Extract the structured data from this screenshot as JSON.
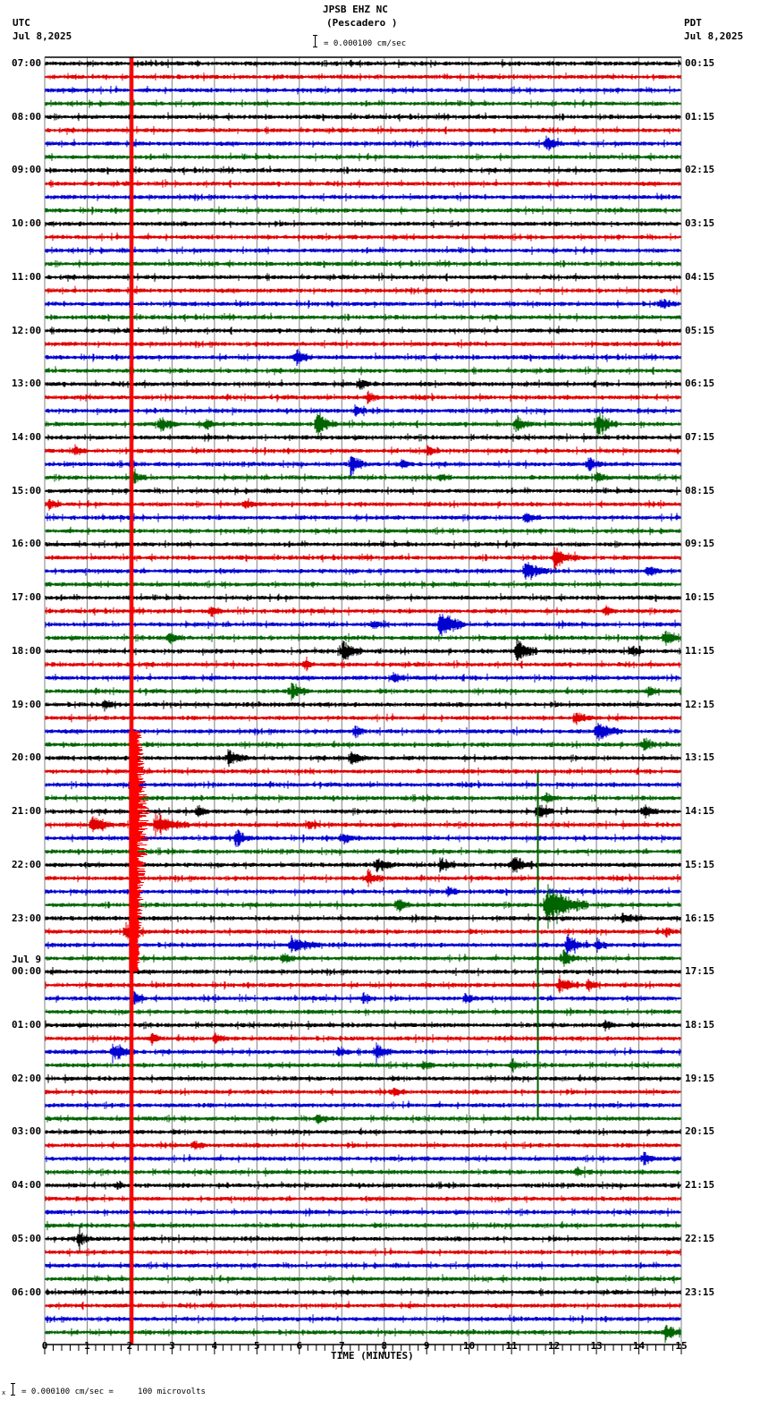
{
  "header": {
    "station": "JPSB EHZ NC",
    "location": "(Pescadero )",
    "left_tz": "UTC",
    "left_date": "Jul 8,2025",
    "right_tz": "PDT",
    "right_date": "Jul 8,2025",
    "scale_text": "= 0.000100 cm/sec"
  },
  "footer": {
    "scale_text": "= 0.000100 cm/sec =     100 microvolts",
    "x_axis_title": "TIME (MINUTES)"
  },
  "colors": {
    "trace_cycle": [
      "#000000",
      "#e00000",
      "#0000d0",
      "#006400"
    ],
    "grid": "#808080",
    "teleseism_line": "#ff0000"
  },
  "chart_data": {
    "type": "line",
    "title": "JPSB EHZ NC (Pescadero ) helicorder",
    "xlabel": "TIME (MINUTES)",
    "ylabel": "",
    "xlim": [
      0,
      15
    ],
    "x_ticks": [
      0,
      1,
      2,
      3,
      4,
      5,
      6,
      7,
      8,
      9,
      10,
      11,
      12,
      13,
      14,
      15
    ],
    "minor_ticks_per_minute": 5,
    "traces_per_hour": 4,
    "n_traces": 96,
    "left_labels": [
      {
        "row": 0,
        "text": "07:00"
      },
      {
        "row": 4,
        "text": "08:00"
      },
      {
        "row": 8,
        "text": "09:00"
      },
      {
        "row": 12,
        "text": "10:00"
      },
      {
        "row": 16,
        "text": "11:00"
      },
      {
        "row": 20,
        "text": "12:00"
      },
      {
        "row": 24,
        "text": "13:00"
      },
      {
        "row": 28,
        "text": "14:00"
      },
      {
        "row": 32,
        "text": "15:00"
      },
      {
        "row": 36,
        "text": "16:00"
      },
      {
        "row": 40,
        "text": "17:00"
      },
      {
        "row": 44,
        "text": "18:00"
      },
      {
        "row": 48,
        "text": "19:00"
      },
      {
        "row": 52,
        "text": "20:00"
      },
      {
        "row": 56,
        "text": "21:00"
      },
      {
        "row": 60,
        "text": "22:00"
      },
      {
        "row": 64,
        "text": "23:00"
      },
      {
        "row": 68,
        "text": "00:00",
        "date": "Jul 9"
      },
      {
        "row": 72,
        "text": "01:00"
      },
      {
        "row": 76,
        "text": "02:00"
      },
      {
        "row": 80,
        "text": "03:00"
      },
      {
        "row": 84,
        "text": "04:00"
      },
      {
        "row": 88,
        "text": "05:00"
      },
      {
        "row": 92,
        "text": "06:00"
      }
    ],
    "right_labels": [
      {
        "row": 0,
        "text": "00:15"
      },
      {
        "row": 4,
        "text": "01:15"
      },
      {
        "row": 8,
        "text": "02:15"
      },
      {
        "row": 12,
        "text": "03:15"
      },
      {
        "row": 16,
        "text": "04:15"
      },
      {
        "row": 20,
        "text": "05:15"
      },
      {
        "row": 24,
        "text": "06:15"
      },
      {
        "row": 28,
        "text": "07:15"
      },
      {
        "row": 32,
        "text": "08:15"
      },
      {
        "row": 36,
        "text": "09:15"
      },
      {
        "row": 40,
        "text": "10:15"
      },
      {
        "row": 44,
        "text": "11:15"
      },
      {
        "row": 48,
        "text": "12:15"
      },
      {
        "row": 52,
        "text": "13:15"
      },
      {
        "row": 56,
        "text": "14:15"
      },
      {
        "row": 60,
        "text": "15:15"
      },
      {
        "row": 64,
        "text": "16:15"
      },
      {
        "row": 68,
        "text": "17:15"
      },
      {
        "row": 72,
        "text": "18:15"
      },
      {
        "row": 76,
        "text": "19:15"
      },
      {
        "row": 80,
        "text": "20:15"
      },
      {
        "row": 84,
        "text": "21:15"
      },
      {
        "row": 88,
        "text": "22:15"
      },
      {
        "row": 92,
        "text": "23:15"
      }
    ],
    "persistent_signal": {
      "minute": 2.05,
      "color": "#ff0000",
      "note": "continuous red vertical band across all traces"
    },
    "events": [
      {
        "row": 6,
        "minute": 11.8,
        "amp": 10,
        "dur": 0.4
      },
      {
        "row": 18,
        "minute": 14.5,
        "amp": 8,
        "dur": 0.4
      },
      {
        "row": 22,
        "minute": 5.9,
        "amp": 12,
        "dur": 0.4
      },
      {
        "row": 24,
        "minute": 7.4,
        "amp": 9,
        "dur": 0.3
      },
      {
        "row": 25,
        "minute": 7.6,
        "amp": 10,
        "dur": 0.3
      },
      {
        "row": 26,
        "minute": 7.3,
        "amp": 8,
        "dur": 0.3
      },
      {
        "row": 27,
        "minute": 2.7,
        "amp": 14,
        "dur": 0.4
      },
      {
        "row": 27,
        "minute": 3.8,
        "amp": 8,
        "dur": 0.3
      },
      {
        "row": 27,
        "minute": 6.4,
        "amp": 16,
        "dur": 0.5
      },
      {
        "row": 27,
        "minute": 11.1,
        "amp": 12,
        "dur": 0.4
      },
      {
        "row": 27,
        "minute": 13.0,
        "amp": 18,
        "dur": 0.5
      },
      {
        "row": 29,
        "minute": 0.7,
        "amp": 7,
        "dur": 0.3
      },
      {
        "row": 29,
        "minute": 9.0,
        "amp": 8,
        "dur": 0.3
      },
      {
        "row": 30,
        "minute": 7.2,
        "amp": 14,
        "dur": 0.4
      },
      {
        "row": 30,
        "minute": 8.4,
        "amp": 8,
        "dur": 0.3
      },
      {
        "row": 30,
        "minute": 12.8,
        "amp": 10,
        "dur": 0.4
      },
      {
        "row": 31,
        "minute": 2.1,
        "amp": 10,
        "dur": 0.3
      },
      {
        "row": 31,
        "minute": 9.3,
        "amp": 8,
        "dur": 0.3
      },
      {
        "row": 31,
        "minute": 13.0,
        "amp": 8,
        "dur": 0.3
      },
      {
        "row": 33,
        "minute": 0.1,
        "amp": 7,
        "dur": 0.3
      },
      {
        "row": 33,
        "minute": 4.7,
        "amp": 8,
        "dur": 0.3
      },
      {
        "row": 34,
        "minute": 11.3,
        "amp": 9,
        "dur": 0.4
      },
      {
        "row": 37,
        "minute": 12.0,
        "amp": 14,
        "dur": 0.6
      },
      {
        "row": 38,
        "minute": 11.3,
        "amp": 14,
        "dur": 0.6
      },
      {
        "row": 38,
        "minute": 14.2,
        "amp": 10,
        "dur": 0.3
      },
      {
        "row": 41,
        "minute": 3.9,
        "amp": 9,
        "dur": 0.3
      },
      {
        "row": 41,
        "minute": 13.2,
        "amp": 8,
        "dur": 0.3
      },
      {
        "row": 42,
        "minute": 9.3,
        "amp": 22,
        "dur": 0.6
      },
      {
        "row": 42,
        "minute": 7.7,
        "amp": 7,
        "dur": 0.3
      },
      {
        "row": 43,
        "minute": 2.9,
        "amp": 9,
        "dur": 0.4
      },
      {
        "row": 43,
        "minute": 14.6,
        "amp": 12,
        "dur": 0.4
      },
      {
        "row": 44,
        "minute": 7.0,
        "amp": 16,
        "dur": 0.5
      },
      {
        "row": 44,
        "minute": 11.1,
        "amp": 18,
        "dur": 0.5
      },
      {
        "row": 44,
        "minute": 13.8,
        "amp": 10,
        "dur": 0.3
      },
      {
        "row": 45,
        "minute": 6.1,
        "amp": 9,
        "dur": 0.3
      },
      {
        "row": 46,
        "minute": 8.2,
        "amp": 8,
        "dur": 0.3
      },
      {
        "row": 47,
        "minute": 5.8,
        "amp": 12,
        "dur": 0.4
      },
      {
        "row": 47,
        "minute": 14.2,
        "amp": 9,
        "dur": 0.3
      },
      {
        "row": 48,
        "minute": 1.4,
        "amp": 8,
        "dur": 0.3
      },
      {
        "row": 49,
        "minute": 12.5,
        "amp": 10,
        "dur": 0.4
      },
      {
        "row": 50,
        "minute": 13.0,
        "amp": 16,
        "dur": 0.6
      },
      {
        "row": 50,
        "minute": 7.3,
        "amp": 9,
        "dur": 0.3
      },
      {
        "row": 51,
        "minute": 14.1,
        "amp": 10,
        "dur": 0.3
      },
      {
        "row": 52,
        "minute": 4.3,
        "amp": 10,
        "dur": 0.5
      },
      {
        "row": 52,
        "minute": 7.2,
        "amp": 12,
        "dur": 0.4
      },
      {
        "row": 55,
        "minute": 11.8,
        "amp": 8,
        "dur": 0.3
      },
      {
        "row": 56,
        "minute": 11.6,
        "amp": 12,
        "dur": 0.4
      },
      {
        "row": 56,
        "minute": 14.1,
        "amp": 9,
        "dur": 0.4
      },
      {
        "row": 56,
        "minute": 3.6,
        "amp": 9,
        "dur": 0.3
      },
      {
        "row": 57,
        "minute": 1.1,
        "amp": 16,
        "dur": 0.5
      },
      {
        "row": 57,
        "minute": 2.6,
        "amp": 16,
        "dur": 0.8
      },
      {
        "row": 57,
        "minute": 6.2,
        "amp": 9,
        "dur": 0.3
      },
      {
        "row": 58,
        "minute": 4.5,
        "amp": 12,
        "dur": 0.4
      },
      {
        "row": 58,
        "minute": 7.0,
        "amp": 10,
        "dur": 0.3
      },
      {
        "row": 60,
        "minute": 9.3,
        "amp": 12,
        "dur": 0.4
      },
      {
        "row": 60,
        "minute": 11.0,
        "amp": 12,
        "dur": 0.5
      },
      {
        "row": 60,
        "minute": 7.8,
        "amp": 10,
        "dur": 0.5
      },
      {
        "row": 61,
        "minute": 7.6,
        "amp": 12,
        "dur": 0.4
      },
      {
        "row": 62,
        "minute": 9.5,
        "amp": 8,
        "dur": 0.3
      },
      {
        "row": 63,
        "minute": 8.3,
        "amp": 12,
        "dur": 0.3
      },
      {
        "row": 63,
        "minute": 11.8,
        "amp": 30,
        "dur": 1.0
      },
      {
        "row": 64,
        "minute": 13.6,
        "amp": 8,
        "dur": 0.5
      },
      {
        "row": 65,
        "minute": 1.9,
        "amp": 14,
        "dur": 0.4
      },
      {
        "row": 65,
        "minute": 14.6,
        "amp": 7,
        "dur": 0.3
      },
      {
        "row": 66,
        "minute": 5.8,
        "amp": 12,
        "dur": 0.7
      },
      {
        "row": 66,
        "minute": 12.3,
        "amp": 14,
        "dur": 0.5
      },
      {
        "row": 66,
        "minute": 13.0,
        "amp": 10,
        "dur": 0.3
      },
      {
        "row": 67,
        "minute": 5.6,
        "amp": 10,
        "dur": 0.3
      },
      {
        "row": 67,
        "minute": 12.2,
        "amp": 12,
        "dur": 0.4
      },
      {
        "row": 69,
        "minute": 12.1,
        "amp": 12,
        "dur": 0.5
      },
      {
        "row": 69,
        "minute": 12.8,
        "amp": 9,
        "dur": 0.3
      },
      {
        "row": 70,
        "minute": 2.1,
        "amp": 9,
        "dur": 0.3
      },
      {
        "row": 70,
        "minute": 9.9,
        "amp": 8,
        "dur": 0.3
      },
      {
        "row": 70,
        "minute": 7.5,
        "amp": 7,
        "dur": 0.3
      },
      {
        "row": 72,
        "minute": 13.2,
        "amp": 8,
        "dur": 0.3
      },
      {
        "row": 73,
        "minute": 2.5,
        "amp": 8,
        "dur": 0.3
      },
      {
        "row": 73,
        "minute": 4.0,
        "amp": 7,
        "dur": 0.3
      },
      {
        "row": 74,
        "minute": 1.6,
        "amp": 14,
        "dur": 0.5
      },
      {
        "row": 74,
        "minute": 7.8,
        "amp": 14,
        "dur": 0.4
      },
      {
        "row": 74,
        "minute": 6.9,
        "amp": 8,
        "dur": 0.3
      },
      {
        "row": 75,
        "minute": 11.0,
        "amp": 9,
        "dur": 0.3
      },
      {
        "row": 75,
        "minute": 8.9,
        "amp": 7,
        "dur": 0.3
      },
      {
        "row": 77,
        "minute": 8.2,
        "amp": 7,
        "dur": 0.3
      },
      {
        "row": 79,
        "minute": 6.4,
        "amp": 8,
        "dur": 0.4
      },
      {
        "row": 81,
        "minute": 3.5,
        "amp": 9,
        "dur": 0.3
      },
      {
        "row": 82,
        "minute": 14.1,
        "amp": 10,
        "dur": 0.3
      },
      {
        "row": 83,
        "minute": 12.5,
        "amp": 6,
        "dur": 0.4
      },
      {
        "row": 84,
        "minute": 1.7,
        "amp": 6,
        "dur": 0.2
      },
      {
        "row": 88,
        "minute": 0.8,
        "amp": 12,
        "dur": 0.3
      },
      {
        "row": 95,
        "minute": 14.6,
        "amp": 10,
        "dur": 0.4
      }
    ]
  }
}
